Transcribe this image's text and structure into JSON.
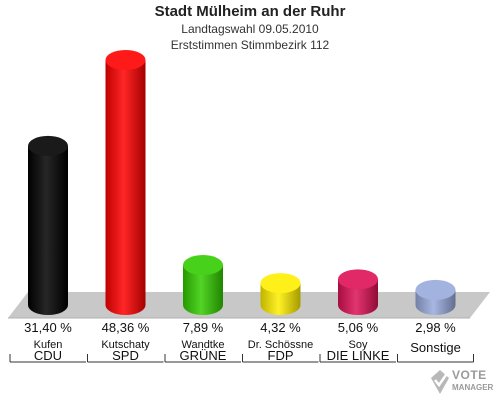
{
  "header": {
    "title": "Stadt Mülheim an der Ruhr",
    "subtitle1": "Landtagswahl 09.05.2010",
    "subtitle2": "Erststimmen Stimmbezirk 112"
  },
  "watermark": {
    "line1": "VOTE",
    "line2": "MANAGER",
    "icon": "ballot-check-icon"
  },
  "chart_data": {
    "type": "bar",
    "title": "Stadt Mülheim an der Ruhr",
    "categories": [
      "CDU",
      "SPD",
      "GRÜNE",
      "FDP",
      "DIE LINKE",
      "Sonstige"
    ],
    "candidates": [
      "Kufen",
      "Kutschaty",
      "Wandtke",
      "Dr. Schössne",
      "Soy",
      ""
    ],
    "values": [
      31.4,
      48.36,
      7.89,
      4.32,
      5.06,
      2.98
    ],
    "value_labels": [
      "31,40 %",
      "48,36 %",
      "7,89 %",
      "4,32 %",
      "5,06 %",
      "2,98 %"
    ],
    "colors": [
      "#000000",
      "#ff0000",
      "#33cc00",
      "#ffee00",
      "#dd1155",
      "#99aadd"
    ],
    "ylim": [
      0,
      50
    ],
    "grid": false,
    "legend": "none"
  }
}
